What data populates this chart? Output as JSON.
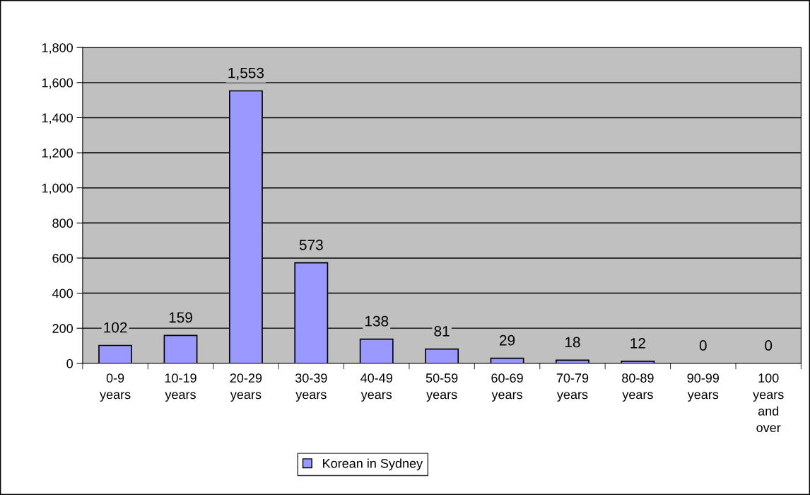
{
  "chart_data": {
    "type": "bar",
    "categories": [
      "0-9\nyears",
      "10-19\nyears",
      "20-29\nyears",
      "30-39\nyears",
      "40-49\nyears",
      "50-59\nyears",
      "60-69\nyears",
      "70-79\nyears",
      "80-89\nyears",
      "90-99\nyears",
      "100\nyears\nand\nover"
    ],
    "series": [
      {
        "name": "Korean in Sydney",
        "color": "#9999ff",
        "values": [
          102,
          159,
          1553,
          573,
          138,
          81,
          29,
          18,
          12,
          0,
          0
        ],
        "value_labels": [
          "102",
          "159",
          "1,553",
          "573",
          "138",
          "81",
          "29",
          "18",
          "12",
          "0",
          "0"
        ]
      }
    ],
    "ylim": [
      0,
      1800
    ],
    "yticks": [
      0,
      200,
      400,
      600,
      800,
      {
        "value": 1000,
        "label": "1,000"
      },
      {
        "value": 1200,
        "label": "1,200"
      },
      {
        "value": 1400,
        "label": "1,400"
      },
      {
        "value": 1600,
        "label": "1,600"
      },
      {
        "value": 1800,
        "label": "1,800"
      }
    ],
    "grid": "y",
    "legend": "bottom"
  }
}
